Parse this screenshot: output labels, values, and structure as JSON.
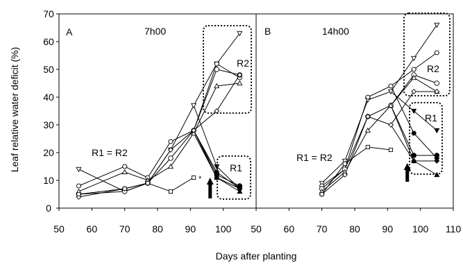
{
  "chart_data": {
    "type": "line",
    "ylabel": "Leaf relative water deficit (%)",
    "xlabel": "Days after planting",
    "ylim": [
      0,
      70
    ],
    "yticks": [
      0,
      10,
      20,
      30,
      40,
      50,
      60,
      70
    ],
    "grid": false,
    "panels": [
      {
        "letter": "A",
        "time": "7h00",
        "xlim": [
          50,
          110
        ],
        "xticks": [
          50,
          60,
          70,
          80,
          90,
          100
        ],
        "annotations": {
          "r1r2": "R1 = R2",
          "r1": "R1",
          "r2": "R2",
          "asterisk": "*"
        },
        "series": [
          {
            "marker": "triangle-down",
            "x": [
              56,
              70,
              77,
              84,
              91,
              98,
              105
            ],
            "y": [
              14,
              6,
              9,
              21,
              37,
              52,
              63
            ]
          },
          {
            "marker": "hexagon",
            "x": [
              56,
              70,
              77,
              84,
              91,
              98,
              105
            ],
            "y": [
              8,
              15,
              11,
              24,
              28,
              52,
              47
            ]
          },
          {
            "marker": "circle",
            "x": [
              56,
              70,
              77,
              84,
              91,
              98,
              105
            ],
            "y": [
              5,
              6,
              9,
              18,
              28,
              50,
              48
            ]
          },
          {
            "marker": "triangle-up",
            "x": [
              56,
              70,
              77,
              84,
              91,
              98,
              105
            ],
            "y": [
              6,
              13,
              10,
              15,
              27,
              44,
              45
            ]
          },
          {
            "marker": "diamond",
            "x": [
              56,
              70,
              77,
              84,
              91,
              98,
              105
            ],
            "y": [
              4,
              7,
              9,
              21,
              28,
              35,
              48
            ]
          },
          {
            "marker": "square",
            "x": [
              56,
              70,
              77,
              84,
              91
            ],
            "y": [
              5,
              7,
              9,
              6,
              11
            ]
          },
          {
            "marker": "triangle-down-filled",
            "x": [
              91,
              98,
              105
            ],
            "y": [
              37,
              15,
              7
            ]
          },
          {
            "marker": "hexagon-filled",
            "x": [
              91,
              98,
              105
            ],
            "y": [
              28,
              13,
              7
            ]
          },
          {
            "marker": "circle-filled",
            "x": [
              91,
              98,
              105
            ],
            "y": [
              28,
              12,
              8
            ]
          },
          {
            "marker": "triangle-up-filled",
            "x": [
              91,
              98,
              105
            ],
            "y": [
              27,
              11,
              6
            ]
          },
          {
            "marker": "diamond-filled",
            "x": [
              91,
              98,
              105
            ],
            "y": [
              28,
              11,
              7
            ]
          }
        ]
      },
      {
        "letter": "B",
        "time": "14h00",
        "xlim": [
          50,
          110
        ],
        "xticks": [
          50,
          60,
          70,
          80,
          90,
          100,
          110
        ],
        "annotations": {
          "r1r2": "R1 = R2",
          "r1": "R1",
          "r2": "R2"
        },
        "series": [
          {
            "marker": "triangle-down",
            "x": [
              70,
              77,
              84,
              91,
              98,
              105
            ],
            "y": [
              9,
              17,
              39,
              42,
              54,
              66
            ]
          },
          {
            "marker": "hexagon",
            "x": [
              70,
              77,
              84,
              91,
              98,
              105
            ],
            "y": [
              8,
              14,
              40,
              44,
              50,
              56
            ]
          },
          {
            "marker": "circle",
            "x": [
              70,
              77,
              84,
              91,
              98,
              105
            ],
            "y": [
              7,
              14,
              33,
              37,
              48,
              45
            ]
          },
          {
            "marker": "triangle-up",
            "x": [
              70,
              77,
              84,
              91,
              98,
              105
            ],
            "y": [
              6,
              13,
              28,
              37,
              47,
              42
            ]
          },
          {
            "marker": "diamond",
            "x": [
              70,
              77,
              84,
              91,
              98,
              105
            ],
            "y": [
              5,
              12,
              33,
              30,
              42,
              42
            ]
          },
          {
            "marker": "square",
            "x": [
              70,
              77,
              84,
              91
            ],
            "y": [
              5,
              16,
              22,
              21
            ]
          },
          {
            "marker": "triangle-down-filled",
            "x": [
              91,
              98,
              105
            ],
            "y": [
              42,
              35,
              28
            ]
          },
          {
            "marker": "hexagon-filled",
            "x": [
              91,
              98,
              105
            ],
            "y": [
              44,
              27,
              18
            ]
          },
          {
            "marker": "circle-filled",
            "x": [
              91,
              98,
              105
            ],
            "y": [
              37,
              19,
              19
            ]
          },
          {
            "marker": "triangle-up-filled",
            "x": [
              91,
              98,
              105
            ],
            "y": [
              37,
              17,
              12
            ]
          },
          {
            "marker": "diamond-filled",
            "x": [
              91,
              98,
              105
            ],
            "y": [
              30,
              17,
              17
            ]
          }
        ]
      }
    ]
  }
}
